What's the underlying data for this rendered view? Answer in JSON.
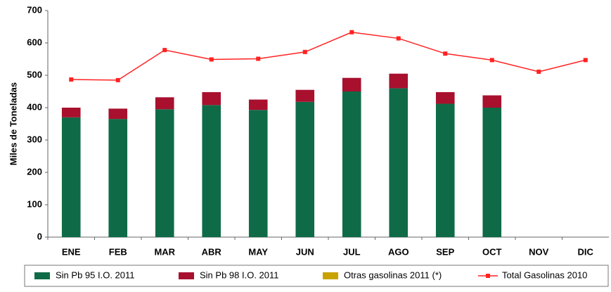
{
  "chart_data": {
    "type": "bar",
    "y_label": "Miles de Toneladas",
    "categories": [
      "ENE",
      "FEB",
      "MAR",
      "ABR",
      "MAY",
      "JUN",
      "JUL",
      "AGO",
      "SEP",
      "OCT",
      "NOV",
      "DIC"
    ],
    "series": [
      {
        "name": "Sin Pb 95 I.O. 2011",
        "color": "#0f6b47",
        "type": "bar",
        "values": [
          370,
          365,
          395,
          408,
          393,
          418,
          450,
          460,
          412,
          400,
          null,
          null
        ]
      },
      {
        "name": "Sin Pb 98 I.O. 2011",
        "color": "#a8102e",
        "type": "bar",
        "values": [
          30,
          32,
          37,
          40,
          32,
          37,
          42,
          45,
          36,
          38,
          null,
          null
        ]
      },
      {
        "name": "Otras gasolinas 2011 (*)",
        "color": "#c9a200",
        "type": "bar",
        "values": [
          0,
          0,
          0,
          0,
          0,
          0,
          0,
          0,
          0,
          0,
          null,
          null
        ]
      },
      {
        "name": "Total Gasolinas 2010",
        "color": "#ff2222",
        "type": "line",
        "values": [
          487,
          485,
          578,
          549,
          551,
          572,
          633,
          614,
          567,
          547,
          511,
          547
        ]
      }
    ],
    "ylim": [
      0,
      700
    ],
    "yticks": [
      0,
      100,
      200,
      300,
      400,
      500,
      600,
      700
    ],
    "grid": false,
    "legend": "bottom"
  }
}
